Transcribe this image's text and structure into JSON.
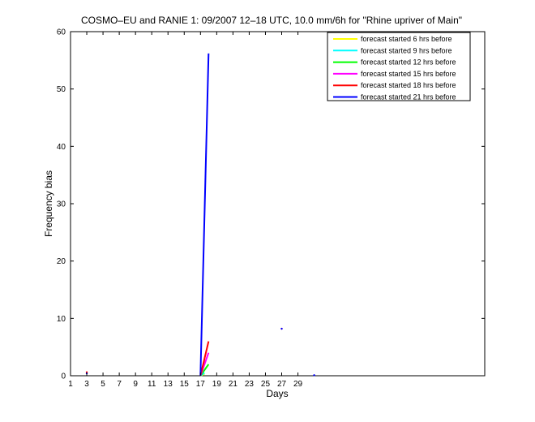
{
  "chart_data": {
    "type": "line",
    "title": "COSMO–EU and RANIE 1: 09/2007 12–18 UTC, 10.0 mm/6h for \"Rhine upriver of Main\"",
    "xlabel": "Days",
    "ylabel": "Frequency bias",
    "xlim": [
      1,
      52
    ],
    "ylim": [
      0,
      60
    ],
    "xticks": [
      1,
      3,
      5,
      7,
      9,
      11,
      13,
      15,
      17,
      19,
      21,
      23,
      25,
      27,
      29
    ],
    "yticks": [
      0,
      10,
      20,
      30,
      40,
      50,
      60
    ],
    "grid": false,
    "legend_position": "top-right",
    "series": [
      {
        "name": "forecast started 6 hrs before",
        "color": "#ffff00",
        "x": [
          17,
          17.5
        ],
        "y": [
          0,
          0.3
        ],
        "dots": []
      },
      {
        "name": "forecast started 9 hrs before",
        "color": "#00ffff",
        "x": [
          17,
          17.5
        ],
        "y": [
          0,
          0.5
        ],
        "dots": []
      },
      {
        "name": "forecast started 12 hrs before",
        "color": "#00ff00",
        "x": [
          17,
          18
        ],
        "y": [
          0,
          2
        ],
        "dots": []
      },
      {
        "name": "forecast started 15 hrs before",
        "color": "#ff00ff",
        "x": [
          17,
          18
        ],
        "y": [
          0,
          4
        ],
        "dots": []
      },
      {
        "name": "forecast started 18 hrs before",
        "color": "#ff0000",
        "x": [
          17,
          18
        ],
        "y": [
          0,
          6
        ],
        "dots": [
          [
            3,
            0.6
          ],
          [
            27,
            8.2
          ]
        ]
      },
      {
        "name": "forecast started 21 hrs before",
        "color": "#0000ff",
        "x": [
          17,
          18
        ],
        "y": [
          0,
          56.2
        ],
        "dots": [
          [
            3,
            0.4
          ],
          [
            27,
            8.2
          ],
          [
            31,
            0.1
          ]
        ]
      }
    ]
  }
}
